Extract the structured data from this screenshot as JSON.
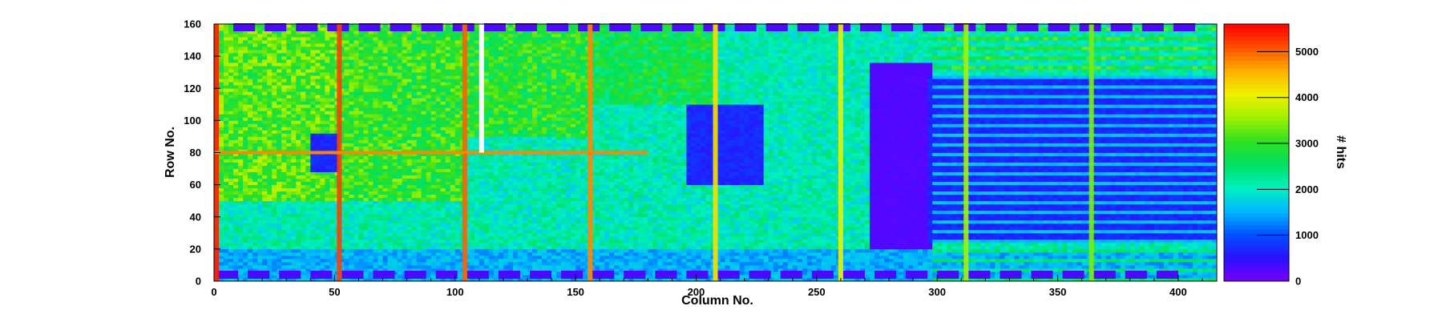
{
  "chart_data": {
    "type": "heatmap",
    "title": "",
    "xlabel": "Column No.",
    "ylabel": "Row No.",
    "xlim": [
      0,
      416
    ],
    "ylim": [
      0,
      160
    ],
    "x_ticks": [
      0,
      50,
      100,
      150,
      200,
      250,
      300,
      350,
      400
    ],
    "y_ticks": [
      0,
      20,
      40,
      60,
      80,
      100,
      120,
      140,
      160
    ],
    "colorbar": {
      "label": "# hits",
      "range": [
        0,
        5600
      ],
      "ticks": [
        0,
        1000,
        2000,
        3000,
        4000,
        5000
      ],
      "palette": [
        "#7a00ff",
        "#2a10ff",
        "#0050ff",
        "#00b8ff",
        "#00f0c0",
        "#00e060",
        "#30e020",
        "#a0f000",
        "#f0f000",
        "#ffb000",
        "#ff5000",
        "#ff0000"
      ]
    },
    "grid": false,
    "legend": "none",
    "features": {
      "background_level": 2100,
      "hot_columns": [
        {
          "x": 1,
          "level": 5400
        },
        {
          "x": 52,
          "level": 5200
        },
        {
          "x": 104,
          "level": 5000
        },
        {
          "x": 156,
          "level": 4800
        },
        {
          "x": 208,
          "level": 4200
        },
        {
          "x": 260,
          "level": 4000
        },
        {
          "x": 312,
          "level": 3600
        },
        {
          "x": 364,
          "level": 3400
        }
      ],
      "hot_row": {
        "y": 80,
        "x_range": [
          0,
          180
        ],
        "level": 4800
      },
      "dead_column": {
        "x": 111,
        "y_range": [
          80,
          160
        ]
      },
      "green_regions": [
        {
          "x": [
            0,
            52
          ],
          "y": [
            50,
            160
          ],
          "level": 3200
        },
        {
          "x": [
            52,
            104
          ],
          "y": [
            50,
            160
          ],
          "level": 3000
        },
        {
          "x": [
            104,
            156
          ],
          "y": [
            90,
            160
          ],
          "level": 2900
        },
        {
          "x": [
            156,
            208
          ],
          "y": [
            110,
            160
          ],
          "level": 2700
        }
      ],
      "low_regions": [
        {
          "x": [
            272,
            297
          ],
          "y": [
            20,
            136
          ],
          "level": 250
        },
        {
          "x": [
            297,
            416
          ],
          "y": [
            25,
            127
          ],
          "level": 700
        },
        {
          "x": [
            196,
            228
          ],
          "y": [
            60,
            110
          ],
          "level": 700
        },
        {
          "x": [
            41,
            52
          ],
          "y": [
            68,
            92
          ],
          "level": 700
        },
        {
          "x": [
            0,
            416
          ],
          "y": [
            0,
            20
          ],
          "level": 1500
        }
      ],
      "pad_rows": [
        {
          "y": 158,
          "x_start": 8,
          "x_end": 412,
          "pitch": 13,
          "width": 9,
          "level": 300
        },
        {
          "y": 4,
          "x_start": 1,
          "x_end": 412,
          "pitch": 13,
          "width": 9,
          "level": 300
        }
      ]
    }
  }
}
